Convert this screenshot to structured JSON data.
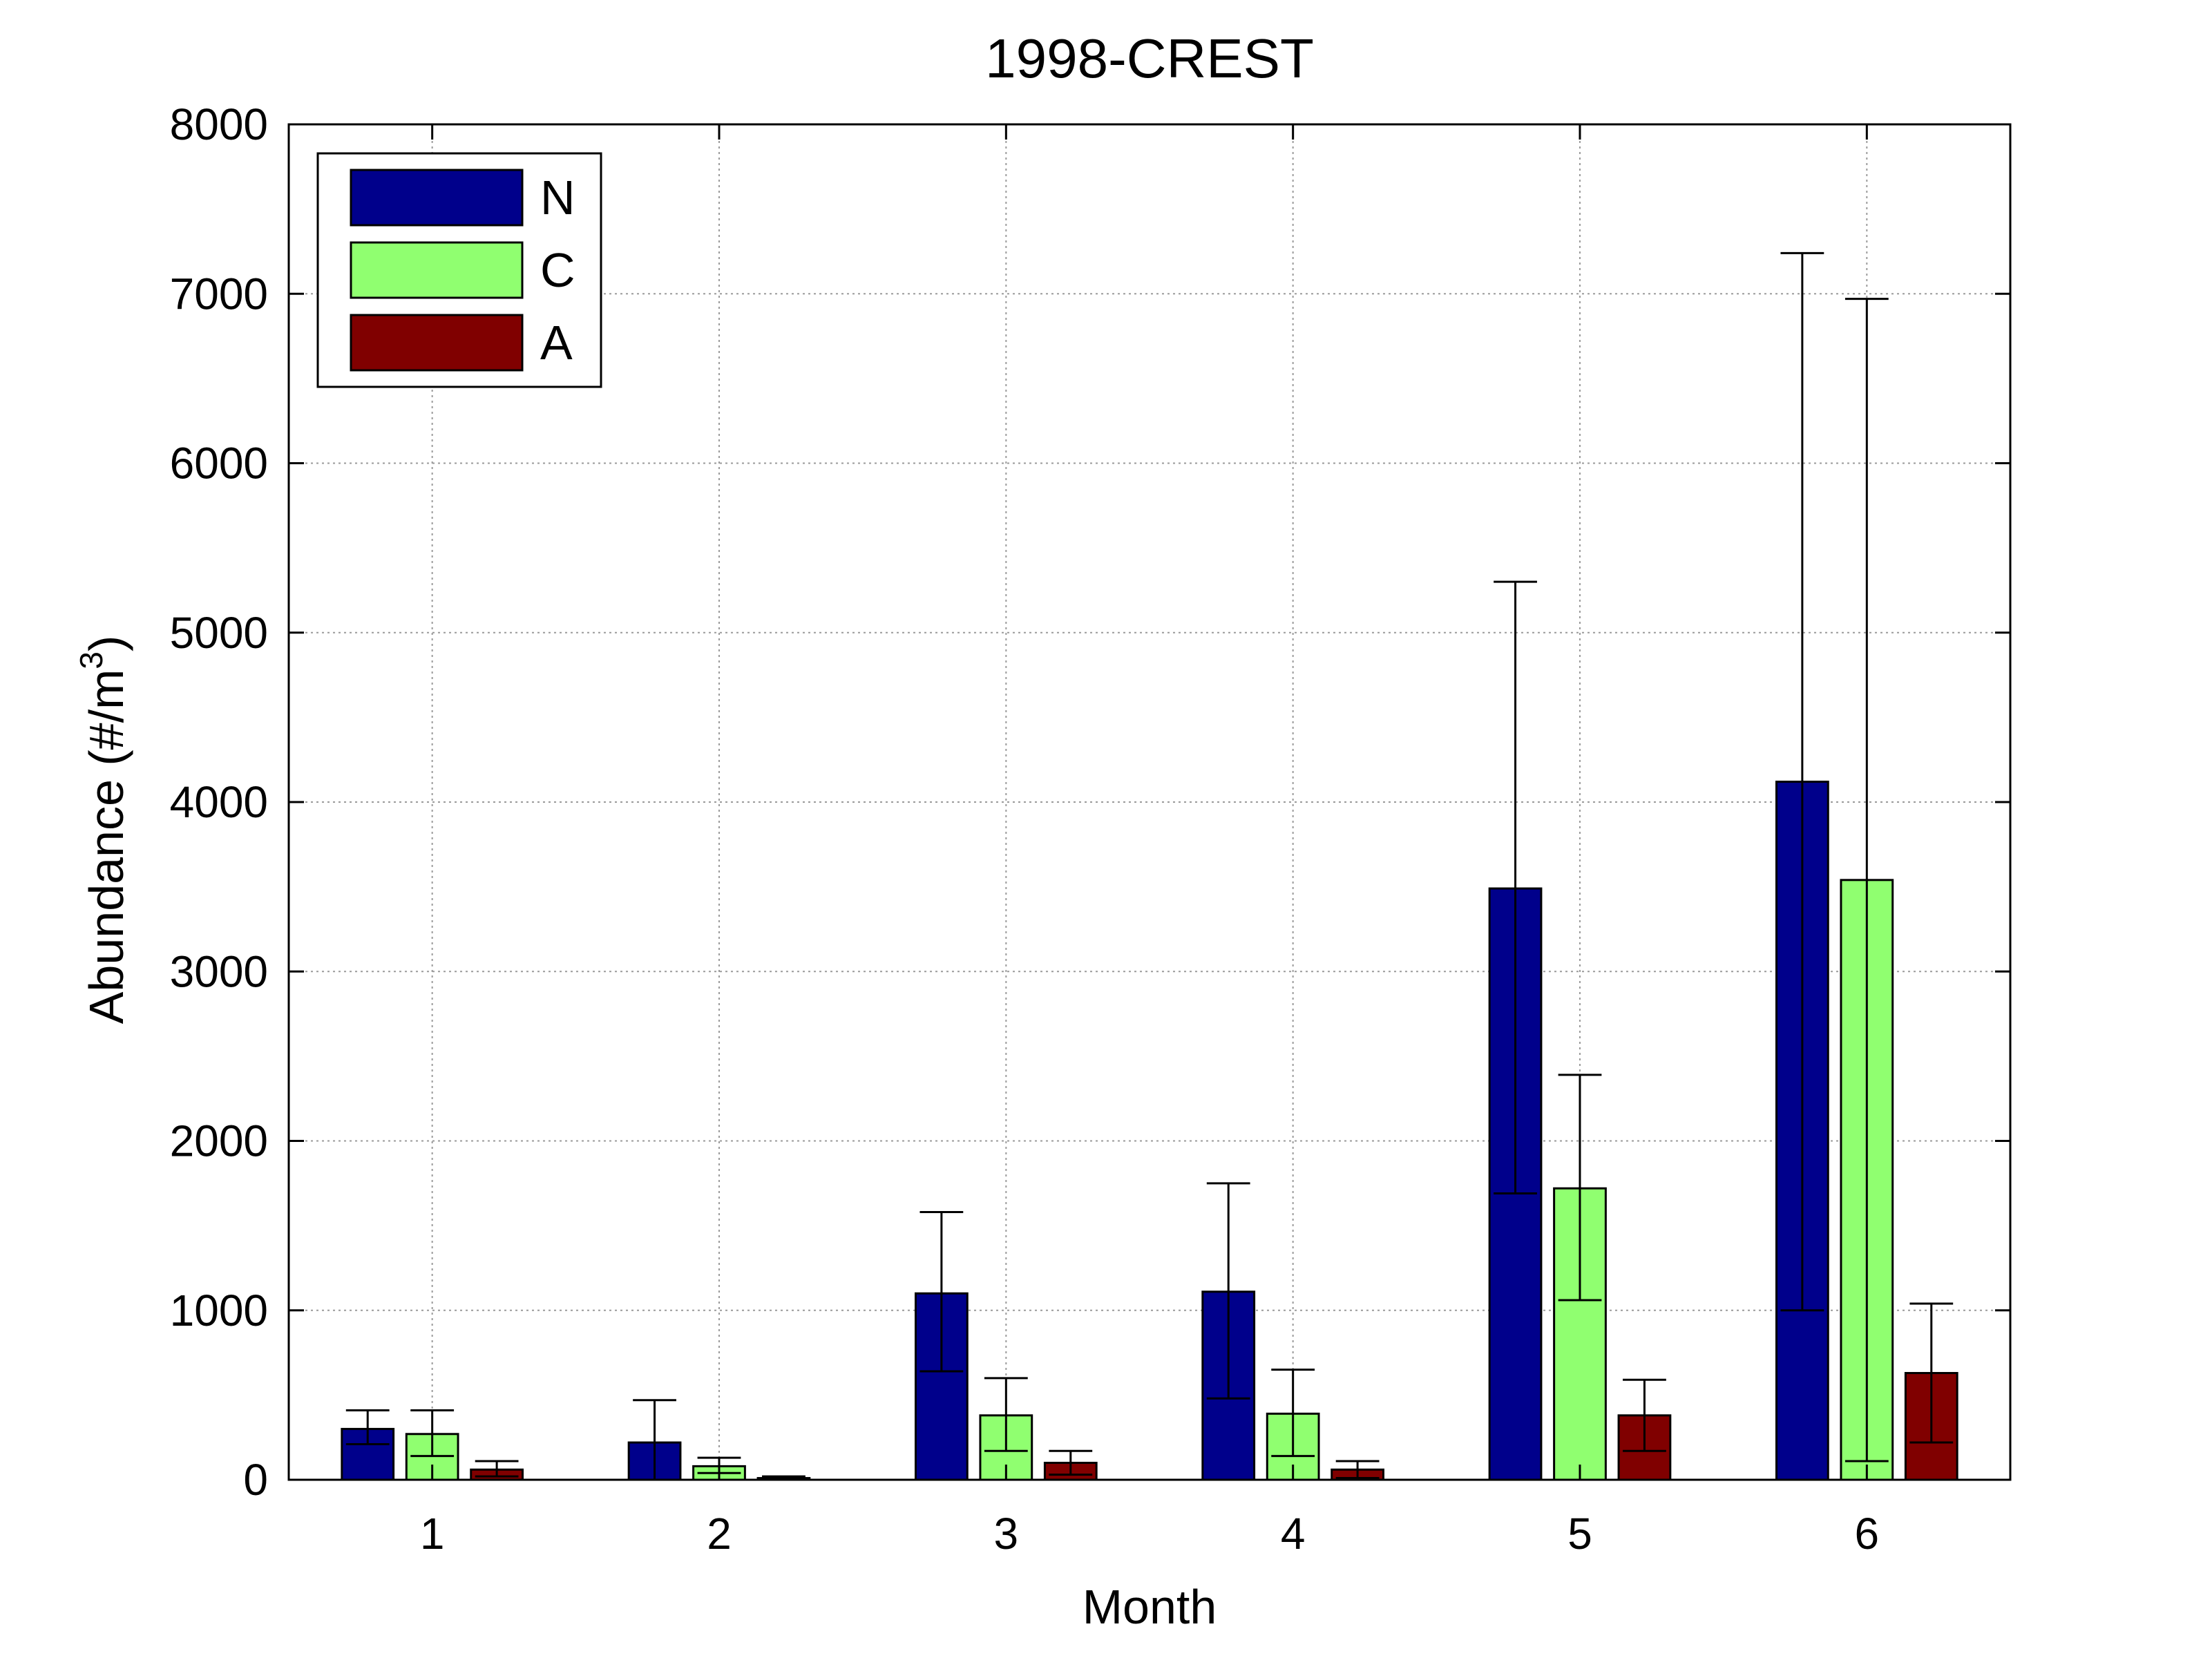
{
  "chart_data": {
    "type": "bar",
    "title": "1998-CREST",
    "xlabel": "Month",
    "ylabel": "Abundance (#/m",
    "ylabel_superscript": "3",
    "ylabel_close": ")",
    "categories": [
      "1",
      "2",
      "3",
      "4",
      "5",
      "6"
    ],
    "ylim": [
      0,
      8000
    ],
    "yticks": [
      0,
      1000,
      2000,
      3000,
      4000,
      5000,
      6000,
      7000,
      8000
    ],
    "grid": true,
    "legend_position": "top-left",
    "series": [
      {
        "name": "N",
        "color": "#00008b",
        "values": [
          300,
          220,
          1100,
          1110,
          3490,
          4120
        ],
        "error_low": [
          210,
          0,
          640,
          480,
          1690,
          1000
        ],
        "error_high": [
          410,
          470,
          1580,
          1750,
          5300,
          7240
        ]
      },
      {
        "name": "C",
        "color": "#90ff70",
        "values": [
          270,
          80,
          380,
          390,
          1720,
          3540
        ],
        "error_low": [
          140,
          40,
          170,
          140,
          1060,
          110
        ],
        "error_high": [
          410,
          130,
          600,
          650,
          2390,
          6970
        ]
      },
      {
        "name": "A",
        "color": "#800000",
        "values": [
          60,
          10,
          100,
          60,
          380,
          630
        ],
        "error_low": [
          20,
          0,
          30,
          10,
          170,
          220
        ],
        "error_high": [
          110,
          20,
          170,
          110,
          590,
          1040
        ]
      }
    ]
  }
}
